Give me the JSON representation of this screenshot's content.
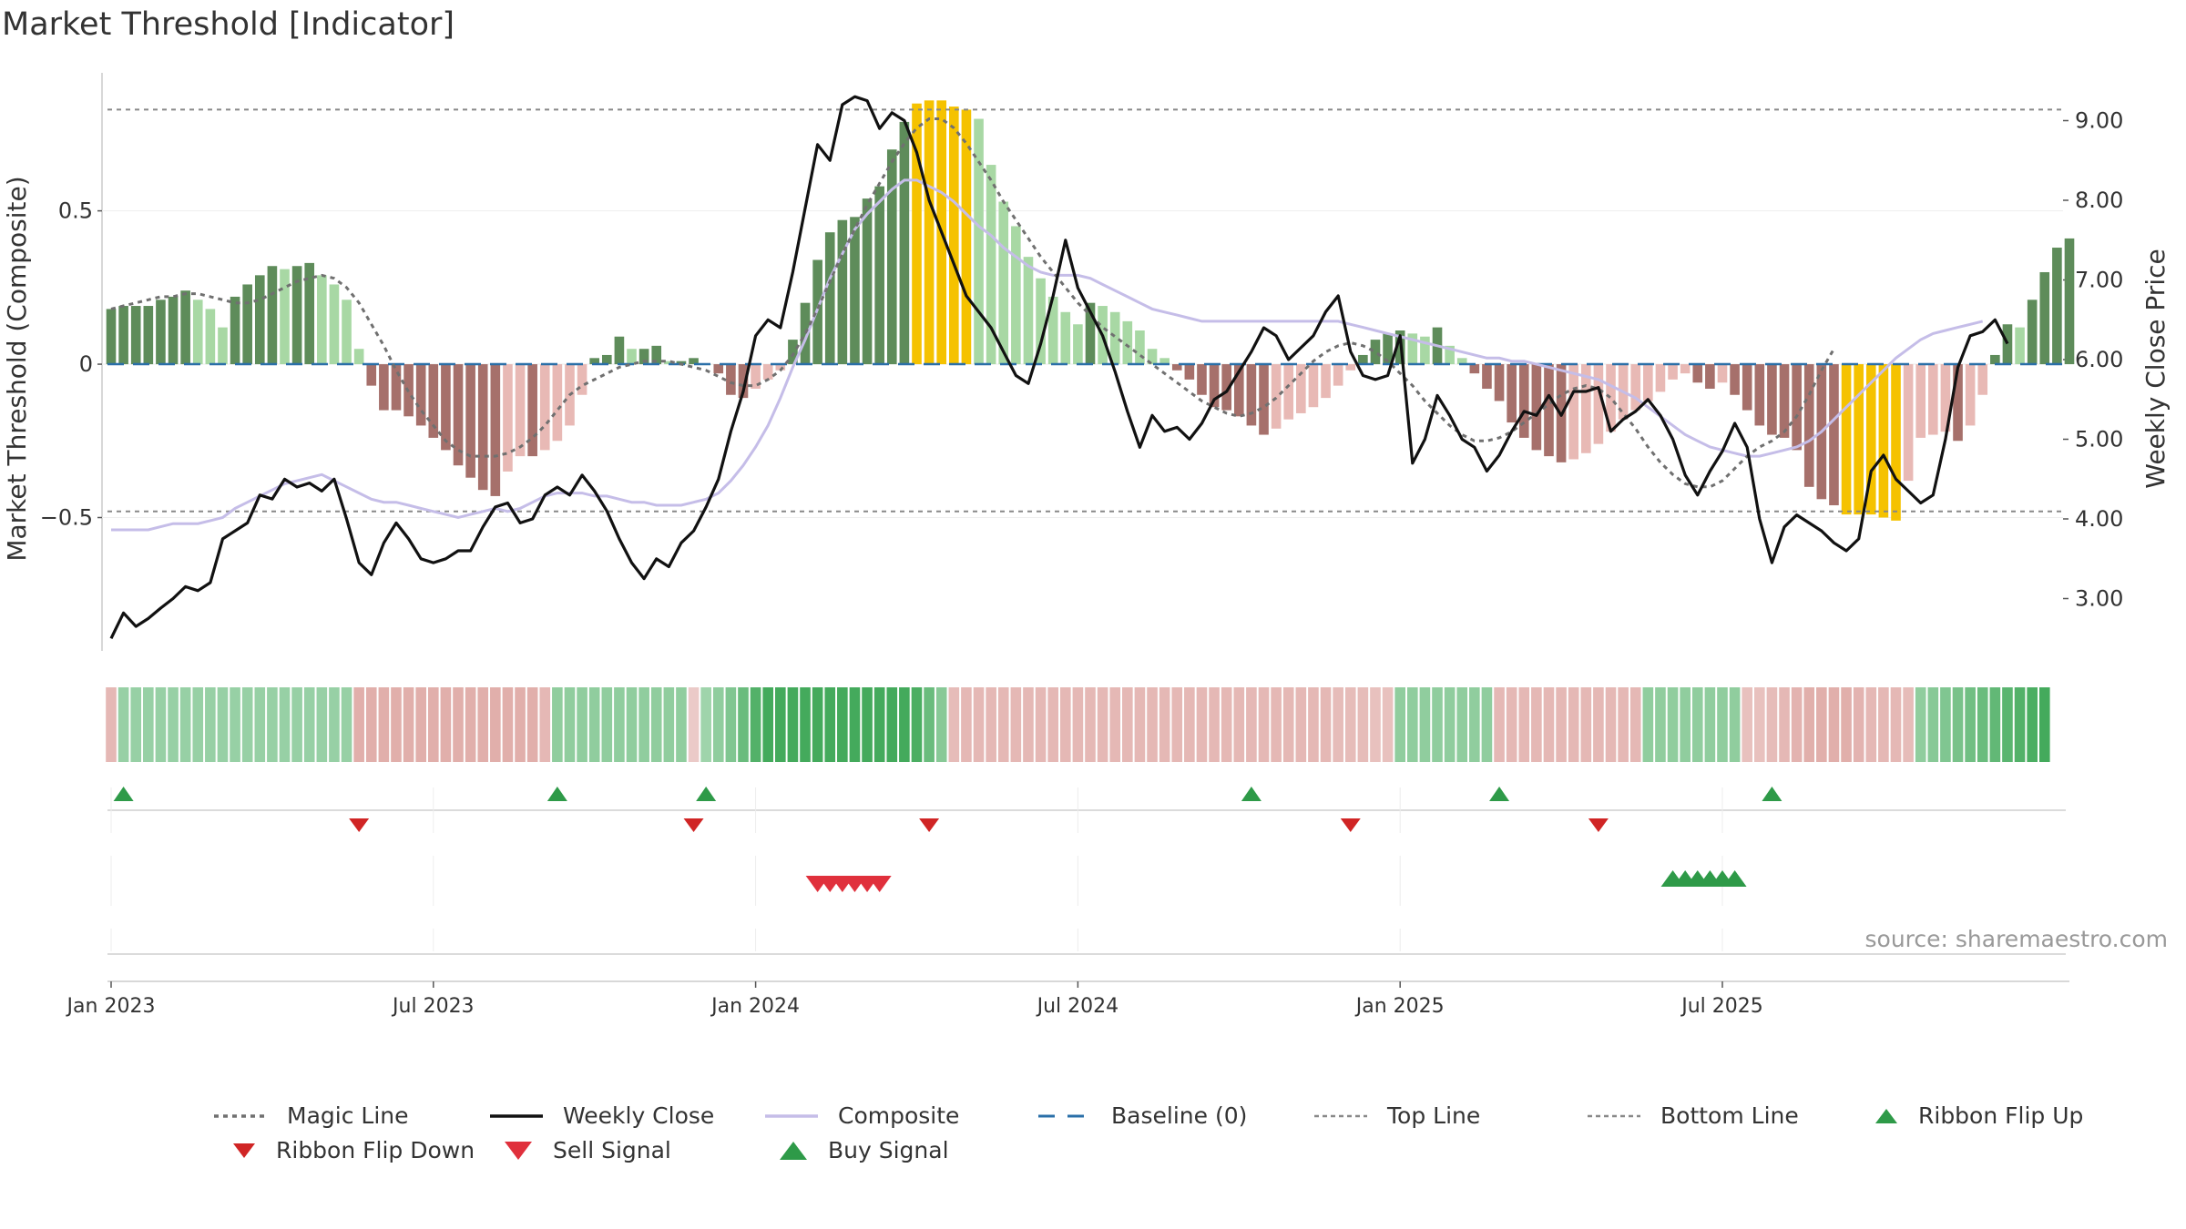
{
  "chart_data": {
    "type": "bar",
    "title": "Market Threshold [Indicator]",
    "ylabel": "Market Threshold (Composite)",
    "y2label": "Weekly Close Price",
    "ylim": [
      -0.92,
      0.95
    ],
    "y2lim": [
      2.4,
      9.6
    ],
    "yticks": [
      {
        "v": 0.5,
        "label": "0.5"
      },
      {
        "v": 0,
        "label": "0"
      },
      {
        "v": -0.5,
        "label": "−0.5"
      }
    ],
    "y2ticks": [
      "3.00",
      "4.00",
      "5.00",
      "6.00",
      "7.00",
      "8.00",
      "9.00"
    ],
    "x_start_label": "Jan 2023",
    "xticks": [
      {
        "week": 0,
        "label": "Jan 2023"
      },
      {
        "week": 26,
        "label": "Jul 2023"
      },
      {
        "week": 52,
        "label": "Jan 2024"
      },
      {
        "week": 78,
        "label": "Jul 2024"
      },
      {
        "week": 104,
        "label": "Jan 2025"
      },
      {
        "week": 130,
        "label": "Jul 2025"
      }
    ],
    "top_line": 0.83,
    "bottom_line": -0.48,
    "baseline": 0,
    "composite_bars": [
      0.18,
      0.19,
      0.19,
      0.19,
      0.21,
      0.22,
      0.24,
      0.21,
      0.18,
      0.12,
      0.22,
      0.26,
      0.29,
      0.32,
      0.31,
      0.32,
      0.33,
      0.29,
      0.26,
      0.21,
      0.05,
      -0.07,
      -0.15,
      -0.15,
      -0.17,
      -0.2,
      -0.24,
      -0.28,
      -0.33,
      -0.37,
      -0.41,
      -0.43,
      -0.35,
      -0.3,
      -0.3,
      -0.28,
      -0.25,
      -0.2,
      -0.1,
      0.02,
      0.03,
      0.09,
      0.05,
      0.05,
      0.06,
      0.01,
      0.01,
      0.02,
      0.0,
      -0.03,
      -0.1,
      -0.11,
      -0.08,
      -0.05,
      -0.02,
      0.08,
      0.2,
      0.34,
      0.43,
      0.47,
      0.48,
      0.54,
      0.58,
      0.7,
      0.79,
      0.85,
      0.86,
      0.86,
      0.84,
      0.83,
      0.8,
      0.65,
      0.53,
      0.45,
      0.35,
      0.28,
      0.22,
      0.17,
      0.13,
      0.2,
      0.19,
      0.17,
      0.14,
      0.11,
      0.05,
      0.02,
      -0.02,
      -0.05,
      -0.1,
      -0.14,
      -0.15,
      -0.17,
      -0.2,
      -0.23,
      -0.21,
      -0.18,
      -0.16,
      -0.14,
      -0.11,
      -0.07,
      -0.02,
      0.03,
      0.08,
      0.1,
      0.11,
      0.1,
      0.09,
      0.12,
      0.06,
      0.02,
      -0.03,
      -0.08,
      -0.12,
      -0.19,
      -0.24,
      -0.28,
      -0.3,
      -0.32,
      -0.31,
      -0.29,
      -0.26,
      -0.22,
      -0.18,
      -0.15,
      -0.12,
      -0.09,
      -0.05,
      -0.03,
      -0.06,
      -0.08,
      -0.06,
      -0.1,
      -0.15,
      -0.2,
      -0.23,
      -0.24,
      -0.28,
      -0.4,
      -0.44,
      -0.46,
      -0.49,
      -0.49,
      -0.49,
      -0.5,
      -0.51,
      -0.38,
      -0.24,
      -0.23,
      -0.22,
      -0.25,
      -0.2,
      -0.1,
      0.03,
      0.13,
      0.12,
      0.21,
      0.3,
      0.38,
      0.41
    ],
    "magic_line": [
      0.18,
      0.19,
      0.2,
      0.21,
      0.22,
      0.22,
      0.23,
      0.23,
      0.22,
      0.21,
      0.2,
      0.2,
      0.21,
      0.23,
      0.25,
      0.27,
      0.28,
      0.29,
      0.28,
      0.25,
      0.2,
      0.13,
      0.06,
      -0.02,
      -0.09,
      -0.15,
      -0.2,
      -0.25,
      -0.28,
      -0.3,
      -0.3,
      -0.3,
      -0.29,
      -0.27,
      -0.24,
      -0.2,
      -0.15,
      -0.1,
      -0.07,
      -0.05,
      -0.03,
      -0.01,
      0.0,
      0.01,
      0.01,
      0.01,
      0.0,
      -0.01,
      -0.02,
      -0.04,
      -0.06,
      -0.07,
      -0.07,
      -0.05,
      -0.02,
      0.03,
      0.1,
      0.18,
      0.27,
      0.36,
      0.44,
      0.52,
      0.59,
      0.66,
      0.72,
      0.77,
      0.8,
      0.8,
      0.77,
      0.72,
      0.66,
      0.6,
      0.53,
      0.47,
      0.41,
      0.35,
      0.3,
      0.25,
      0.2,
      0.16,
      0.12,
      0.09,
      0.06,
      0.03,
      0.0,
      -0.03,
      -0.06,
      -0.09,
      -0.12,
      -0.14,
      -0.16,
      -0.17,
      -0.16,
      -0.14,
      -0.11,
      -0.07,
      -0.03,
      0.01,
      0.04,
      0.06,
      0.07,
      0.06,
      0.04,
      0.01,
      -0.03,
      -0.07,
      -0.12,
      -0.16,
      -0.2,
      -0.23,
      -0.25,
      -0.25,
      -0.24,
      -0.22,
      -0.19,
      -0.16,
      -0.13,
      -0.1,
      -0.08,
      -0.07,
      -0.08,
      -0.11,
      -0.16,
      -0.21,
      -0.27,
      -0.32,
      -0.36,
      -0.39,
      -0.4,
      -0.4,
      -0.38,
      -0.34,
      -0.3,
      -0.27,
      -0.25,
      -0.22,
      -0.17,
      -0.1,
      -0.02,
      0.05
    ],
    "weekly_close": [
      2.5,
      2.82,
      2.65,
      2.75,
      2.88,
      3.0,
      3.15,
      3.1,
      3.2,
      3.75,
      3.85,
      3.95,
      4.3,
      4.25,
      4.5,
      4.4,
      4.45,
      4.35,
      4.5,
      4.0,
      3.45,
      3.3,
      3.7,
      3.95,
      3.75,
      3.5,
      3.45,
      3.5,
      3.6,
      3.6,
      3.9,
      4.15,
      4.2,
      3.95,
      4.0,
      4.3,
      4.4,
      4.3,
      4.55,
      4.35,
      4.1,
      3.75,
      3.45,
      3.25,
      3.5,
      3.4,
      3.7,
      3.85,
      4.15,
      4.5,
      5.1,
      5.6,
      6.3,
      6.5,
      6.4,
      7.1,
      7.9,
      8.7,
      8.5,
      9.2,
      9.3,
      9.25,
      8.9,
      9.1,
      9.0,
      8.6,
      8.0,
      7.6,
      7.2,
      6.8,
      6.6,
      6.4,
      6.1,
      5.8,
      5.7,
      6.2,
      6.8,
      7.5,
      6.9,
      6.6,
      6.3,
      5.85,
      5.35,
      4.9,
      5.3,
      5.1,
      5.15,
      5.0,
      5.2,
      5.5,
      5.6,
      5.85,
      6.1,
      6.4,
      6.3,
      6.0,
      6.15,
      6.3,
      6.6,
      6.8,
      6.1,
      5.8,
      5.75,
      5.8,
      6.3,
      4.7,
      5.0,
      5.55,
      5.3,
      5.0,
      4.9,
      4.6,
      4.8,
      5.1,
      5.35,
      5.3,
      5.55,
      5.3,
      5.6,
      5.6,
      5.65,
      5.1,
      5.25,
      5.35,
      5.5,
      5.3,
      5.0,
      4.55,
      4.3,
      4.6,
      4.85,
      5.2,
      4.9,
      4.0,
      3.45,
      3.9,
      4.05,
      3.95,
      3.85,
      3.7,
      3.6,
      3.75,
      4.6,
      4.8,
      4.5,
      4.35,
      4.2,
      4.3,
      5.0,
      5.9,
      6.3,
      6.35,
      6.5,
      6.2
    ],
    "composite_line": [
      -0.54,
      -0.54,
      -0.54,
      -0.54,
      -0.53,
      -0.52,
      -0.52,
      -0.52,
      -0.51,
      -0.5,
      -0.47,
      -0.45,
      -0.43,
      -0.41,
      -0.39,
      -0.38,
      -0.37,
      -0.36,
      -0.38,
      -0.4,
      -0.42,
      -0.44,
      -0.45,
      -0.45,
      -0.46,
      -0.47,
      -0.48,
      -0.49,
      -0.5,
      -0.49,
      -0.48,
      -0.47,
      -0.48,
      -0.47,
      -0.45,
      -0.43,
      -0.42,
      -0.42,
      -0.42,
      -0.43,
      -0.43,
      -0.44,
      -0.45,
      -0.45,
      -0.46,
      -0.46,
      -0.46,
      -0.45,
      -0.44,
      -0.42,
      -0.38,
      -0.33,
      -0.27,
      -0.2,
      -0.11,
      -0.01,
      0.08,
      0.18,
      0.28,
      0.36,
      0.44,
      0.49,
      0.53,
      0.57,
      0.6,
      0.6,
      0.58,
      0.56,
      0.53,
      0.49,
      0.45,
      0.42,
      0.38,
      0.35,
      0.32,
      0.3,
      0.29,
      0.29,
      0.29,
      0.28,
      0.26,
      0.24,
      0.22,
      0.2,
      0.18,
      0.17,
      0.16,
      0.15,
      0.14,
      0.14,
      0.14,
      0.14,
      0.14,
      0.14,
      0.14,
      0.14,
      0.14,
      0.14,
      0.14,
      0.14,
      0.13,
      0.12,
      0.11,
      0.1,
      0.09,
      0.08,
      0.07,
      0.06,
      0.05,
      0.04,
      0.03,
      0.02,
      0.02,
      0.01,
      0.01,
      0.0,
      -0.01,
      -0.02,
      -0.03,
      -0.04,
      -0.05,
      -0.07,
      -0.09,
      -0.11,
      -0.14,
      -0.17,
      -0.2,
      -0.23,
      -0.25,
      -0.27,
      -0.28,
      -0.29,
      -0.3,
      -0.3,
      -0.29,
      -0.28,
      -0.27,
      -0.25,
      -0.22,
      -0.18,
      -0.14,
      -0.1,
      -0.06,
      -0.02,
      0.02,
      0.05,
      0.08,
      0.1,
      0.11,
      0.12,
      0.13,
      0.14
    ],
    "ribbon_state": [
      -0.5,
      0.4,
      0.4,
      0.4,
      0.4,
      0.4,
      0.4,
      0.4,
      0.4,
      0.4,
      0.4,
      0.4,
      0.4,
      0.4,
      0.4,
      0.4,
      0.4,
      0.4,
      0.4,
      0.4,
      -0.6,
      -0.6,
      -0.6,
      -0.6,
      -0.6,
      -0.6,
      -0.6,
      -0.6,
      -0.6,
      -0.6,
      -0.6,
      -0.6,
      -0.6,
      -0.6,
      -0.6,
      -0.5,
      0.45,
      0.45,
      0.45,
      0.45,
      0.45,
      0.45,
      0.45,
      0.45,
      0.45,
      0.45,
      0.45,
      -0.3,
      0.35,
      0.45,
      0.55,
      0.7,
      0.85,
      0.95,
      0.95,
      0.95,
      0.95,
      0.95,
      0.95,
      0.95,
      0.95,
      0.95,
      0.95,
      0.95,
      0.95,
      0.9,
      0.7,
      0.5,
      -0.45,
      -0.5,
      -0.5,
      -0.5,
      -0.5,
      -0.5,
      -0.5,
      -0.5,
      -0.5,
      -0.5,
      -0.5,
      -0.5,
      -0.5,
      -0.5,
      -0.5,
      -0.5,
      -0.5,
      -0.5,
      -0.5,
      -0.5,
      -0.5,
      -0.5,
      -0.5,
      -0.5,
      -0.5,
      -0.5,
      -0.5,
      -0.5,
      -0.5,
      -0.5,
      -0.5,
      -0.45,
      -0.45,
      -0.45,
      -0.4,
      -0.4,
      0.45,
      0.45,
      0.45,
      0.45,
      0.45,
      0.45,
      0.45,
      0.45,
      -0.5,
      -0.5,
      -0.5,
      -0.5,
      -0.5,
      -0.5,
      -0.5,
      -0.5,
      -0.5,
      -0.5,
      -0.5,
      -0.5,
      0.45,
      0.45,
      0.45,
      0.45,
      0.45,
      0.45,
      0.45,
      0.45,
      -0.4,
      -0.4,
      -0.45,
      -0.5,
      -0.55,
      -0.6,
      -0.6,
      -0.6,
      -0.6,
      -0.55,
      -0.5,
      -0.5,
      -0.5,
      -0.45,
      0.45,
      0.5,
      0.55,
      0.6,
      0.65,
      0.7,
      0.75,
      0.8,
      0.85,
      0.9,
      0.95
    ],
    "ribbon_flip_up": [
      1,
      36,
      48,
      92,
      112,
      134
    ],
    "ribbon_flip_down": [
      20,
      47,
      66,
      100,
      120
    ],
    "sell_signal": [
      57,
      58,
      59,
      60,
      61,
      62
    ],
    "buy_signal": [
      126,
      127,
      128,
      129,
      130,
      131
    ],
    "source": "source: sharemaestro.com",
    "legend": [
      {
        "key": "magic",
        "label": "Magic Line"
      },
      {
        "key": "close",
        "label": "Weekly Close"
      },
      {
        "key": "composite",
        "label": "Composite"
      },
      {
        "key": "baseline",
        "label": "Baseline (0)"
      },
      {
        "key": "top",
        "label": "Top Line"
      },
      {
        "key": "bottom",
        "label": "Bottom Line"
      },
      {
        "key": "flipup",
        "label": "Ribbon Flip Up"
      },
      {
        "key": "flipdown",
        "label": "Ribbon Flip Down"
      },
      {
        "key": "sell",
        "label": "Sell Signal"
      },
      {
        "key": "buy",
        "label": "Buy Signal"
      }
    ]
  },
  "colors": {
    "bar_up_rising": "#5e8c5a",
    "bar_up_falling": "#a8d8a4",
    "bar_down_falling": "#a6706b",
    "bar_down_rising": "#e8b9b5",
    "bar_extreme": "#f5c200",
    "magic_line": "#707070",
    "weekly_close": "#111111",
    "composite_line": "#c5bde8",
    "baseline": "#2a6fa8",
    "threshold_line": "#888888",
    "flip_up": "#2e9a48",
    "flip_down": "#d02525",
    "sell": "#e0303c",
    "buy": "#2e9a48",
    "ribbon_green": "#3ca755",
    "ribbon_red": "#d48a85"
  }
}
